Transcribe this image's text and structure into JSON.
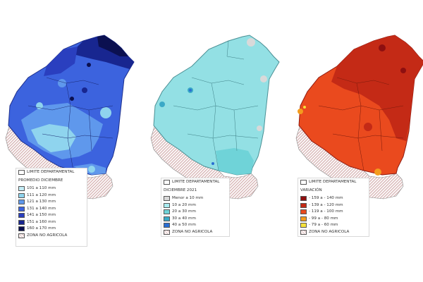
{
  "colors": {
    "nonagri": "#e2c8c8",
    "border": "#8a8a8a",
    "bg": "#ffffff"
  },
  "maps": [
    {
      "id": "promedio",
      "base_color": "#3c63de",
      "outline_color": "#1d2f8c",
      "legend": {
        "limit_label": "LIMITE DEPARTAMENTAL",
        "title": "PROMEDIO DICIEMBRE",
        "items": [
          {
            "label": "101 a 110 mm",
            "color": "#c3ecf5"
          },
          {
            "label": "111 a 120 mm",
            "color": "#8fd4ee"
          },
          {
            "label": "121 a 130 mm",
            "color": "#5f98ec"
          },
          {
            "label": "131 a 140 mm",
            "color": "#3c63de"
          },
          {
            "label": "141 a 150 mm",
            "color": "#2a3fbf"
          },
          {
            "label": "151 a 160 mm",
            "color": "#182690"
          },
          {
            "label": "160 a 170 mm",
            "color": "#0b1050"
          },
          {
            "label": "ZONA NO AGRICOLA",
            "color": "#e2c8c8",
            "hatched": true
          }
        ]
      }
    },
    {
      "id": "diciembre2021",
      "base_color": "#93e0e4",
      "outline_color": "#4a8f94",
      "legend": {
        "limit_label": "LIMITE DEPARTAMENTAL",
        "title": "DICIEMBRE 2021",
        "items": [
          {
            "label": "Menor a 10 mm",
            "color": "#d9d9d9"
          },
          {
            "label": "10 a 20 mm",
            "color": "#a9ecf0"
          },
          {
            "label": "20 a 30 mm",
            "color": "#6fd3d8"
          },
          {
            "label": "30 a 40 mm",
            "color": "#3aa9c7"
          },
          {
            "label": "40 a 50 mm",
            "color": "#2a6fd3"
          },
          {
            "label": "ZONA NO AGRICOLA",
            "color": "#e2c8c8",
            "hatched": true
          }
        ]
      }
    },
    {
      "id": "variacion",
      "base_color": "#ea4a1e",
      "outline_color": "#8f1a10",
      "legend": {
        "limit_label": "LIMITE DEPARTAMENTAL",
        "title": "VARIACIÓN",
        "items": [
          {
            "label": "- 159  a - 140 mm",
            "color": "#8e0f10"
          },
          {
            "label": "- 139  a - 120 mm",
            "color": "#c42a16"
          },
          {
            "label": "- 119  a - 100 mm",
            "color": "#ea4a1e"
          },
          {
            "label": "- 99  a - 80 mm",
            "color": "#f39c1e"
          },
          {
            "label": "- 79  a - 60 mm",
            "color": "#f6e23a"
          },
          {
            "label": "ZONA NO AGRICOLA",
            "color": "#e2c8c8",
            "hatched": true
          }
        ]
      }
    }
  ]
}
